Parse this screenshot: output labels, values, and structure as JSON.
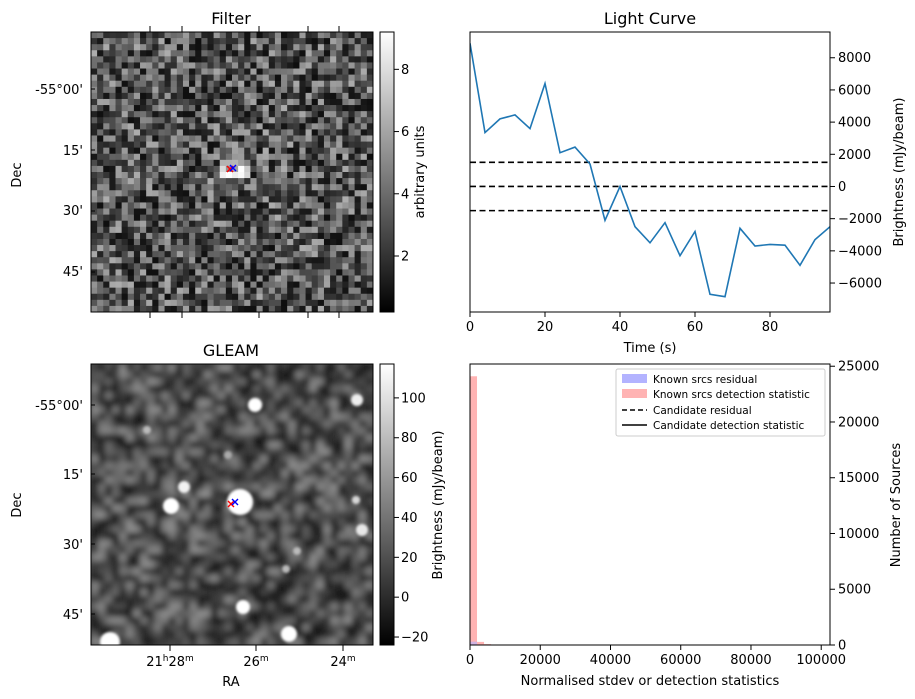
{
  "panels": {
    "filter": {
      "title": "Filter",
      "ylabel": "Dec",
      "yticks": [
        "-55°00'",
        "15'",
        "30'",
        "45'"
      ],
      "colorbar": {
        "label": "arbitrary units",
        "ticks": [
          "2",
          "4",
          "6",
          "8"
        ],
        "range": [
          0.2,
          9.2
        ]
      }
    },
    "gleam": {
      "title": "GLEAM",
      "xlabel": "RA",
      "ylabel": "Dec",
      "yticks": [
        "-55°00'",
        "15'",
        "30'",
        "45'"
      ],
      "xticks": [
        {
          "h": "21",
          "hs": "h",
          "m": "28",
          "ms": "m"
        },
        {
          "h": "",
          "hs": "",
          "m": "26",
          "ms": "m"
        },
        {
          "h": "",
          "hs": "",
          "m": "24",
          "ms": "m"
        }
      ],
      "colorbar": {
        "label": "Brightness (mJy/beam)",
        "ticks": [
          "−20",
          "0",
          "20",
          "40",
          "60",
          "80",
          "100"
        ],
        "range": [
          -24,
          117
        ]
      }
    }
  },
  "colors": {
    "line": "#1f77b4",
    "known_residual": "#b3b3ff",
    "known_detection": "#ffb3b3",
    "marker_red": "#ff0000",
    "marker_blue": "#0000ff"
  },
  "chart_data": [
    {
      "type": "line",
      "title": "Light Curve",
      "xlabel": "Time (s)",
      "ylabel": "Brightness (mJy/beam)",
      "xlim": [
        0,
        96
      ],
      "ylim": [
        -7800,
        9600
      ],
      "xticks": [
        "0",
        "20",
        "40",
        "60",
        "80"
      ],
      "yticks": [
        "−6000",
        "−4000",
        "−2000",
        "0",
        "2000",
        "4000",
        "6000",
        "8000"
      ],
      "x": [
        0,
        4,
        8,
        12,
        16,
        20,
        24,
        28,
        32,
        36,
        40,
        44,
        48,
        52,
        56,
        60,
        64,
        68,
        72,
        76,
        80,
        84,
        88,
        92,
        96
      ],
      "y": [
        8900,
        3350,
        4200,
        4450,
        3600,
        6400,
        2100,
        2450,
        1400,
        -2100,
        0,
        -2500,
        -3500,
        -2250,
        -4300,
        -2800,
        -6700,
        -6850,
        -2600,
        -3700,
        -3600,
        -3650,
        -4900,
        -3300,
        -2500
      ],
      "hlines": [
        1500,
        0,
        -1500
      ]
    },
    {
      "type": "histogram",
      "xlabel": "Normalised stdev or detection statistics",
      "ylabel": "Number of Sources",
      "xlim": [
        0,
        102500
      ],
      "ylim": [
        0,
        25200
      ],
      "xticks": [
        "0",
        "20000",
        "40000",
        "60000",
        "80000",
        "100000"
      ],
      "yticks": [
        "0",
        "5000",
        "10000",
        "15000",
        "20000",
        "25000"
      ],
      "legend": [
        "Known srcs residual",
        "Known srcs detection statistic",
        "Candidate residual",
        "Candidate detection statistic"
      ],
      "legend_position": "top-right",
      "bin_width": 2000,
      "counts": [
        24100,
        280,
        80,
        40,
        30,
        20,
        15,
        12,
        10,
        10,
        8,
        8,
        7,
        6,
        6,
        5,
        5,
        5,
        4,
        4,
        4,
        3,
        3,
        3,
        3,
        2,
        2,
        2,
        2,
        2,
        2,
        2,
        2,
        1,
        1,
        1,
        1,
        1,
        1,
        1,
        1,
        1,
        1,
        1,
        1,
        1,
        1,
        1,
        1,
        1,
        1
      ]
    }
  ]
}
